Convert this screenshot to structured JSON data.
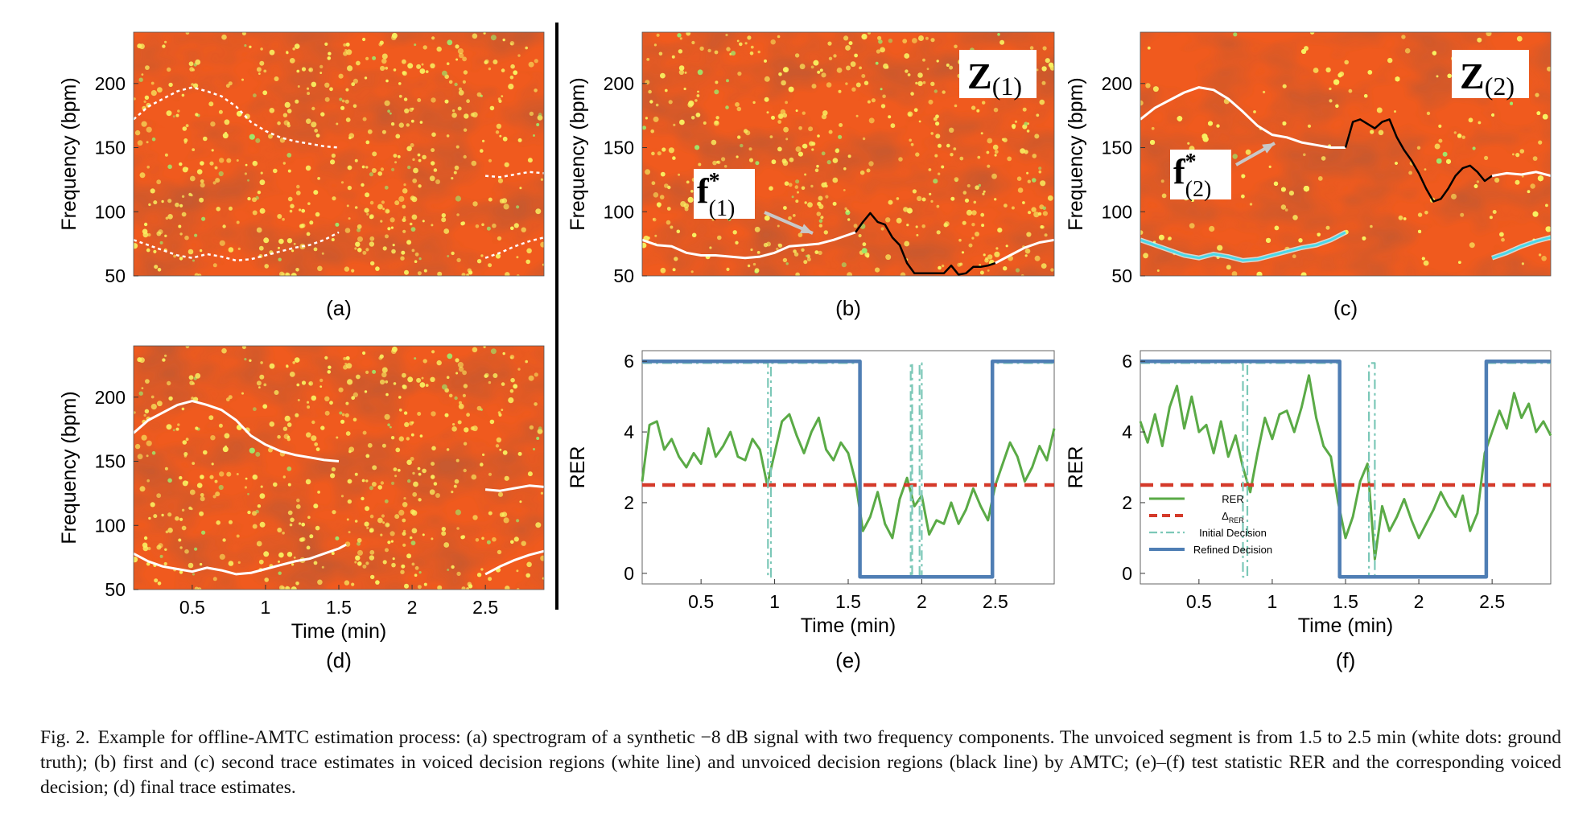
{
  "figure": {
    "colors": {
      "spectrogram_bg": "#f05a1e",
      "spectrogram_dark": "#8a1a08",
      "spectrogram_speck": "#f8f060",
      "rer_line": "#5aaa46",
      "threshold_line": "#d43a2a",
      "initial_decision": "#7cc8b8",
      "refined_decision": "#4f7eb4",
      "trace_white": "#ffffff",
      "trace_black": "#000000",
      "cyan_trace": "#4ad8e8"
    },
    "panels": [
      {
        "id": "a",
        "label": "(a)",
        "ylabel": "Frequency (bpm)",
        "yticks": [
          "200",
          "150",
          "100",
          "50"
        ],
        "xlabel": "",
        "xticks": [],
        "badge": ""
      },
      {
        "id": "b",
        "label": "(b)",
        "ylabel": "Frequency (bpm)",
        "yticks": [
          "200",
          "150",
          "100",
          "50"
        ],
        "xlabel": "",
        "xticks": [],
        "badge": "Z",
        "badge_sub": "(1)",
        "arrow_label": "f",
        "arrow_sup": "*",
        "arrow_sub": "(1)"
      },
      {
        "id": "c",
        "label": "(c)",
        "ylabel": "Frequency (bpm)",
        "yticks": [
          "200",
          "150",
          "100",
          "50"
        ],
        "xlabel": "",
        "xticks": [],
        "badge": "Z",
        "badge_sub": "(2)",
        "arrow_label": "f",
        "arrow_sup": "*",
        "arrow_sub": "(2)"
      },
      {
        "id": "d",
        "label": "(d)",
        "ylabel": "Frequency (bpm)",
        "yticks": [
          "200",
          "150",
          "100",
          "50"
        ],
        "xlabel": "Time (min)",
        "xticks": [
          "0.5",
          "1",
          "1.5",
          "2",
          "2.5"
        ]
      },
      {
        "id": "e",
        "label": "(e)",
        "ylabel": "RER",
        "yticks": [
          "6",
          "4",
          "2",
          "0"
        ],
        "xlabel": "Time (min)",
        "xticks": [
          "0.5",
          "1",
          "1.5",
          "2",
          "2.5"
        ]
      },
      {
        "id": "f",
        "label": "(f)",
        "ylabel": "RER",
        "yticks": [
          "6",
          "4",
          "2",
          "0"
        ],
        "xlabel": "Time (min)",
        "xticks": [
          "0.5",
          "1",
          "1.5",
          "2",
          "2.5"
        ],
        "legend": [
          "RER",
          "Δ",
          "Initial Decision",
          "Refined Decision"
        ],
        "legend_sub": "RER"
      }
    ]
  },
  "chart_data": [
    {
      "type": "line",
      "panel": "e",
      "xlabel": "Time (min)",
      "ylabel": "RER",
      "xlim": [
        0.1,
        2.9
      ],
      "ylim": [
        -0.3,
        6.3
      ],
      "series": [
        {
          "name": "RER",
          "x": [
            0.1,
            0.15,
            0.2,
            0.25,
            0.3,
            0.35,
            0.4,
            0.45,
            0.5,
            0.55,
            0.6,
            0.65,
            0.7,
            0.75,
            0.8,
            0.85,
            0.9,
            0.95,
            1.0,
            1.05,
            1.1,
            1.15,
            1.2,
            1.25,
            1.3,
            1.35,
            1.4,
            1.45,
            1.5,
            1.55,
            1.6,
            1.65,
            1.7,
            1.75,
            1.8,
            1.85,
            1.9,
            1.95,
            2.0,
            2.05,
            2.1,
            2.15,
            2.2,
            2.25,
            2.3,
            2.35,
            2.4,
            2.45,
            2.5,
            2.55,
            2.6,
            2.65,
            2.7,
            2.75,
            2.8,
            2.85,
            2.9
          ],
          "y": [
            2.6,
            4.2,
            4.3,
            3.5,
            3.8,
            3.3,
            3.0,
            3.4,
            3.1,
            4.1,
            3.3,
            3.6,
            4.0,
            3.3,
            3.2,
            3.8,
            3.5,
            2.5,
            3.4,
            4.3,
            4.5,
            3.9,
            3.4,
            4.0,
            4.4,
            3.5,
            3.2,
            3.7,
            3.4,
            2.6,
            1.2,
            1.6,
            2.3,
            1.4,
            1.0,
            2.1,
            2.7,
            1.9,
            2.2,
            1.1,
            1.5,
            1.4,
            2.0,
            1.4,
            1.8,
            2.4,
            1.9,
            1.5,
            2.5,
            3.1,
            3.7,
            3.3,
            2.6,
            3.0,
            3.6,
            3.2,
            4.1
          ]
        },
        {
          "name": "Threshold",
          "x": [
            0.1,
            2.9
          ],
          "y": [
            2.5,
            2.5
          ]
        },
        {
          "name": "Initial Decision",
          "x": [
            0.1,
            0.955,
            0.955,
            0.975,
            0.975,
            1.58,
            1.58,
            1.925,
            1.925,
            1.935,
            1.935,
            1.985,
            1.985,
            2.0,
            2.0,
            2.48,
            2.48,
            2.9
          ],
          "y": [
            5.95,
            5.95,
            -0.1,
            -0.1,
            5.95,
            5.95,
            -0.1,
            -0.1,
            5.95,
            5.95,
            -0.1,
            -0.1,
            5.95,
            5.95,
            -0.1,
            -0.1,
            5.95,
            5.95
          ]
        },
        {
          "name": "Refined Decision",
          "x": [
            0.1,
            1.58,
            1.58,
            2.48,
            2.48,
            2.9
          ],
          "y": [
            6,
            6,
            -0.1,
            -0.1,
            6,
            6
          ]
        }
      ]
    },
    {
      "type": "line",
      "panel": "f",
      "xlabel": "Time (min)",
      "ylabel": "RER",
      "xlim": [
        0.1,
        2.9
      ],
      "ylim": [
        -0.3,
        6.3
      ],
      "series": [
        {
          "name": "RER",
          "x": [
            0.1,
            0.15,
            0.2,
            0.25,
            0.3,
            0.35,
            0.4,
            0.45,
            0.5,
            0.55,
            0.6,
            0.65,
            0.7,
            0.75,
            0.8,
            0.85,
            0.9,
            0.95,
            1.0,
            1.05,
            1.1,
            1.15,
            1.2,
            1.25,
            1.3,
            1.35,
            1.4,
            1.45,
            1.5,
            1.55,
            1.6,
            1.65,
            1.7,
            1.75,
            1.8,
            1.85,
            1.9,
            1.95,
            2.0,
            2.05,
            2.1,
            2.15,
            2.2,
            2.25,
            2.3,
            2.35,
            2.4,
            2.45,
            2.5,
            2.55,
            2.6,
            2.65,
            2.7,
            2.75,
            2.8,
            2.85,
            2.9
          ],
          "y": [
            4.3,
            3.7,
            4.5,
            3.6,
            4.7,
            5.3,
            4.1,
            5.0,
            4.0,
            4.2,
            3.4,
            4.3,
            3.3,
            3.9,
            3.0,
            2.3,
            3.4,
            4.4,
            3.8,
            4.5,
            4.6,
            4.0,
            4.7,
            5.6,
            4.4,
            3.6,
            3.3,
            2.0,
            1.0,
            1.6,
            2.6,
            3.1,
            0.4,
            1.9,
            1.2,
            1.6,
            2.1,
            1.5,
            1.0,
            1.4,
            1.8,
            2.3,
            1.9,
            1.6,
            2.2,
            1.2,
            1.7,
            3.4,
            4.0,
            4.6,
            4.1,
            5.1,
            4.4,
            4.8,
            4.0,
            4.3,
            3.9
          ]
        },
        {
          "name": "Threshold",
          "x": [
            0.1,
            2.9
          ],
          "y": [
            2.5,
            2.5
          ]
        },
        {
          "name": "Initial Decision",
          "x": [
            0.1,
            0.8,
            0.8,
            0.83,
            0.83,
            1.46,
            1.46,
            1.66,
            1.66,
            1.7,
            1.7,
            1.73,
            1.73,
            2.46,
            2.46,
            2.9
          ],
          "y": [
            5.95,
            5.95,
            -0.1,
            -0.1,
            5.95,
            5.95,
            -0.1,
            -0.1,
            5.95,
            5.95,
            -0.1,
            -0.1,
            -0.1,
            -0.1,
            5.95,
            5.95
          ]
        },
        {
          "name": "Refined Decision",
          "x": [
            0.1,
            1.46,
            1.46,
            2.46,
            2.46,
            2.9
          ],
          "y": [
            6,
            6,
            -0.1,
            -0.1,
            6,
            6
          ]
        }
      ]
    },
    {
      "type": "heatmap",
      "panel": "a",
      "ylabel": "Frequency (bpm)",
      "xlim": [
        0.1,
        2.9
      ],
      "ylim": [
        50,
        240
      ],
      "series": [
        {
          "name": "upper-white-dots",
          "x": [
            0.1,
            0.2,
            0.3,
            0.4,
            0.5,
            0.6,
            0.7,
            0.8,
            0.9,
            1.0,
            1.1,
            1.2,
            1.3,
            1.4,
            1.5
          ],
          "y": [
            172,
            182,
            188,
            194,
            197,
            194,
            190,
            182,
            170,
            163,
            158,
            155,
            153,
            151,
            150
          ]
        },
        {
          "name": "lower-white-dots",
          "x": [
            0.1,
            0.2,
            0.3,
            0.4,
            0.5,
            0.6,
            0.7,
            0.8,
            0.9,
            1.0,
            1.1,
            1.2,
            1.3,
            1.4,
            1.5
          ],
          "y": [
            78,
            74,
            70,
            66,
            64,
            67,
            65,
            62,
            63,
            66,
            69,
            72,
            74,
            78,
            84
          ]
        },
        {
          "name": "upper-right-dots",
          "x": [
            2.5,
            2.6,
            2.7,
            2.8,
            2.9
          ],
          "y": [
            128,
            127,
            129,
            131,
            130
          ]
        },
        {
          "name": "lower-right-dots",
          "x": [
            2.5,
            2.6,
            2.7,
            2.8,
            2.9
          ],
          "y": [
            64,
            68,
            73,
            77,
            80
          ]
        }
      ]
    },
    {
      "type": "heatmap",
      "panel": "b",
      "ylabel": "Frequency (bpm)",
      "xlim": [
        0.1,
        2.9
      ],
      "ylim": [
        50,
        240
      ],
      "series": [
        {
          "name": "white-trace-1",
          "x": [
            0.1,
            0.2,
            0.3,
            0.4,
            0.5,
            0.6,
            0.7,
            0.8,
            0.9,
            1.0,
            1.1,
            1.2,
            1.3,
            1.4,
            1.5,
            1.55
          ],
          "y": [
            78,
            74,
            73,
            68,
            66,
            66,
            65,
            64,
            65,
            68,
            73,
            74,
            75,
            78,
            82,
            84
          ]
        },
        {
          "name": "black-trace-1",
          "x": [
            1.55,
            1.6,
            1.65,
            1.7,
            1.75,
            1.8,
            1.85,
            1.9,
            1.95,
            2.0,
            2.05,
            2.1,
            2.15,
            2.2,
            2.25,
            2.3,
            2.35,
            2.4,
            2.45,
            2.5
          ],
          "y": [
            84,
            92,
            99,
            92,
            90,
            80,
            74,
            60,
            52,
            52,
            52,
            52,
            52,
            58,
            51,
            52,
            57,
            57,
            58,
            60
          ]
        },
        {
          "name": "white-trace-2",
          "x": [
            2.5,
            2.6,
            2.7,
            2.8,
            2.9
          ],
          "y": [
            60,
            66,
            72,
            76,
            78
          ]
        }
      ]
    },
    {
      "type": "heatmap",
      "panel": "c",
      "ylabel": "Frequency (bpm)",
      "xlim": [
        0.1,
        2.9
      ],
      "ylim": [
        50,
        240
      ],
      "series": [
        {
          "name": "white-trace-1",
          "x": [
            0.1,
            0.2,
            0.3,
            0.4,
            0.5,
            0.6,
            0.7,
            0.8,
            0.9,
            1.0,
            1.1,
            1.2,
            1.3,
            1.4,
            1.5
          ],
          "y": [
            172,
            181,
            187,
            193,
            197,
            195,
            188,
            178,
            167,
            160,
            158,
            154,
            152,
            150,
            150
          ]
        },
        {
          "name": "black-trace-1",
          "x": [
            1.5,
            1.55,
            1.6,
            1.7,
            1.75,
            1.8,
            1.85,
            1.9,
            1.95,
            2.0,
            2.05,
            2.1,
            2.15,
            2.2,
            2.25,
            2.3,
            2.35,
            2.4,
            2.45,
            2.5
          ],
          "y": [
            150,
            170,
            172,
            165,
            170,
            172,
            158,
            148,
            140,
            130,
            118,
            108,
            110,
            118,
            128,
            134,
            136,
            131,
            124,
            128
          ]
        },
        {
          "name": "white-trace-2",
          "x": [
            2.5,
            2.6,
            2.7,
            2.8,
            2.9
          ],
          "y": [
            128,
            130,
            129,
            131,
            128
          ]
        },
        {
          "name": "cyan-trace-1",
          "x": [
            0.1,
            0.2,
            0.3,
            0.4,
            0.5,
            0.6,
            0.7,
            0.8,
            0.9,
            1.0,
            1.1,
            1.2,
            1.3,
            1.4,
            1.5
          ],
          "y": [
            78,
            74,
            70,
            66,
            64,
            67,
            65,
            62,
            63,
            66,
            69,
            72,
            74,
            78,
            84
          ]
        },
        {
          "name": "cyan-trace-2",
          "x": [
            2.5,
            2.6,
            2.7,
            2.8,
            2.9
          ],
          "y": [
            64,
            68,
            73,
            77,
            80
          ]
        }
      ]
    },
    {
      "type": "heatmap",
      "panel": "d",
      "ylabel": "Frequency (bpm)",
      "xlabel": "Time (min)",
      "xlim": [
        0.1,
        2.9
      ],
      "ylim": [
        50,
        240
      ],
      "series": [
        {
          "name": "upper-trace",
          "x": [
            0.1,
            0.2,
            0.3,
            0.4,
            0.5,
            0.6,
            0.7,
            0.8,
            0.9,
            1.0,
            1.1,
            1.2,
            1.3,
            1.4,
            1.5
          ],
          "y": [
            172,
            182,
            188,
            194,
            197,
            194,
            190,
            182,
            170,
            163,
            158,
            155,
            153,
            151,
            150
          ]
        },
        {
          "name": "lower-trace",
          "x": [
            0.1,
            0.2,
            0.3,
            0.4,
            0.5,
            0.6,
            0.7,
            0.8,
            0.9,
            1.0,
            1.1,
            1.2,
            1.3,
            1.4,
            1.5,
            1.55
          ],
          "y": [
            78,
            72,
            68,
            66,
            64,
            67,
            65,
            62,
            63,
            66,
            69,
            72,
            74,
            78,
            82,
            85
          ]
        },
        {
          "name": "upper-right-trace",
          "x": [
            2.5,
            2.6,
            2.7,
            2.8,
            2.9
          ],
          "y": [
            128,
            127,
            129,
            131,
            130
          ]
        },
        {
          "name": "lower-right-trace",
          "x": [
            2.5,
            2.6,
            2.7,
            2.8,
            2.9
          ],
          "y": [
            62,
            68,
            73,
            77,
            80
          ]
        }
      ]
    }
  ],
  "caption": {
    "label": "Fig. 2.",
    "text": "Example for offline-AMTC estimation process: (a) spectrogram of a synthetic −8 dB signal with two frequency components. The unvoiced segment is from 1.5 to 2.5 min (white dots: ground truth); (b) first and (c) second trace estimates in voiced decision regions (white line) and unvoiced decision regions (black line) by AMTC; (e)–(f) test statistic RER and the corresponding voiced decision; (d) final trace estimates."
  }
}
